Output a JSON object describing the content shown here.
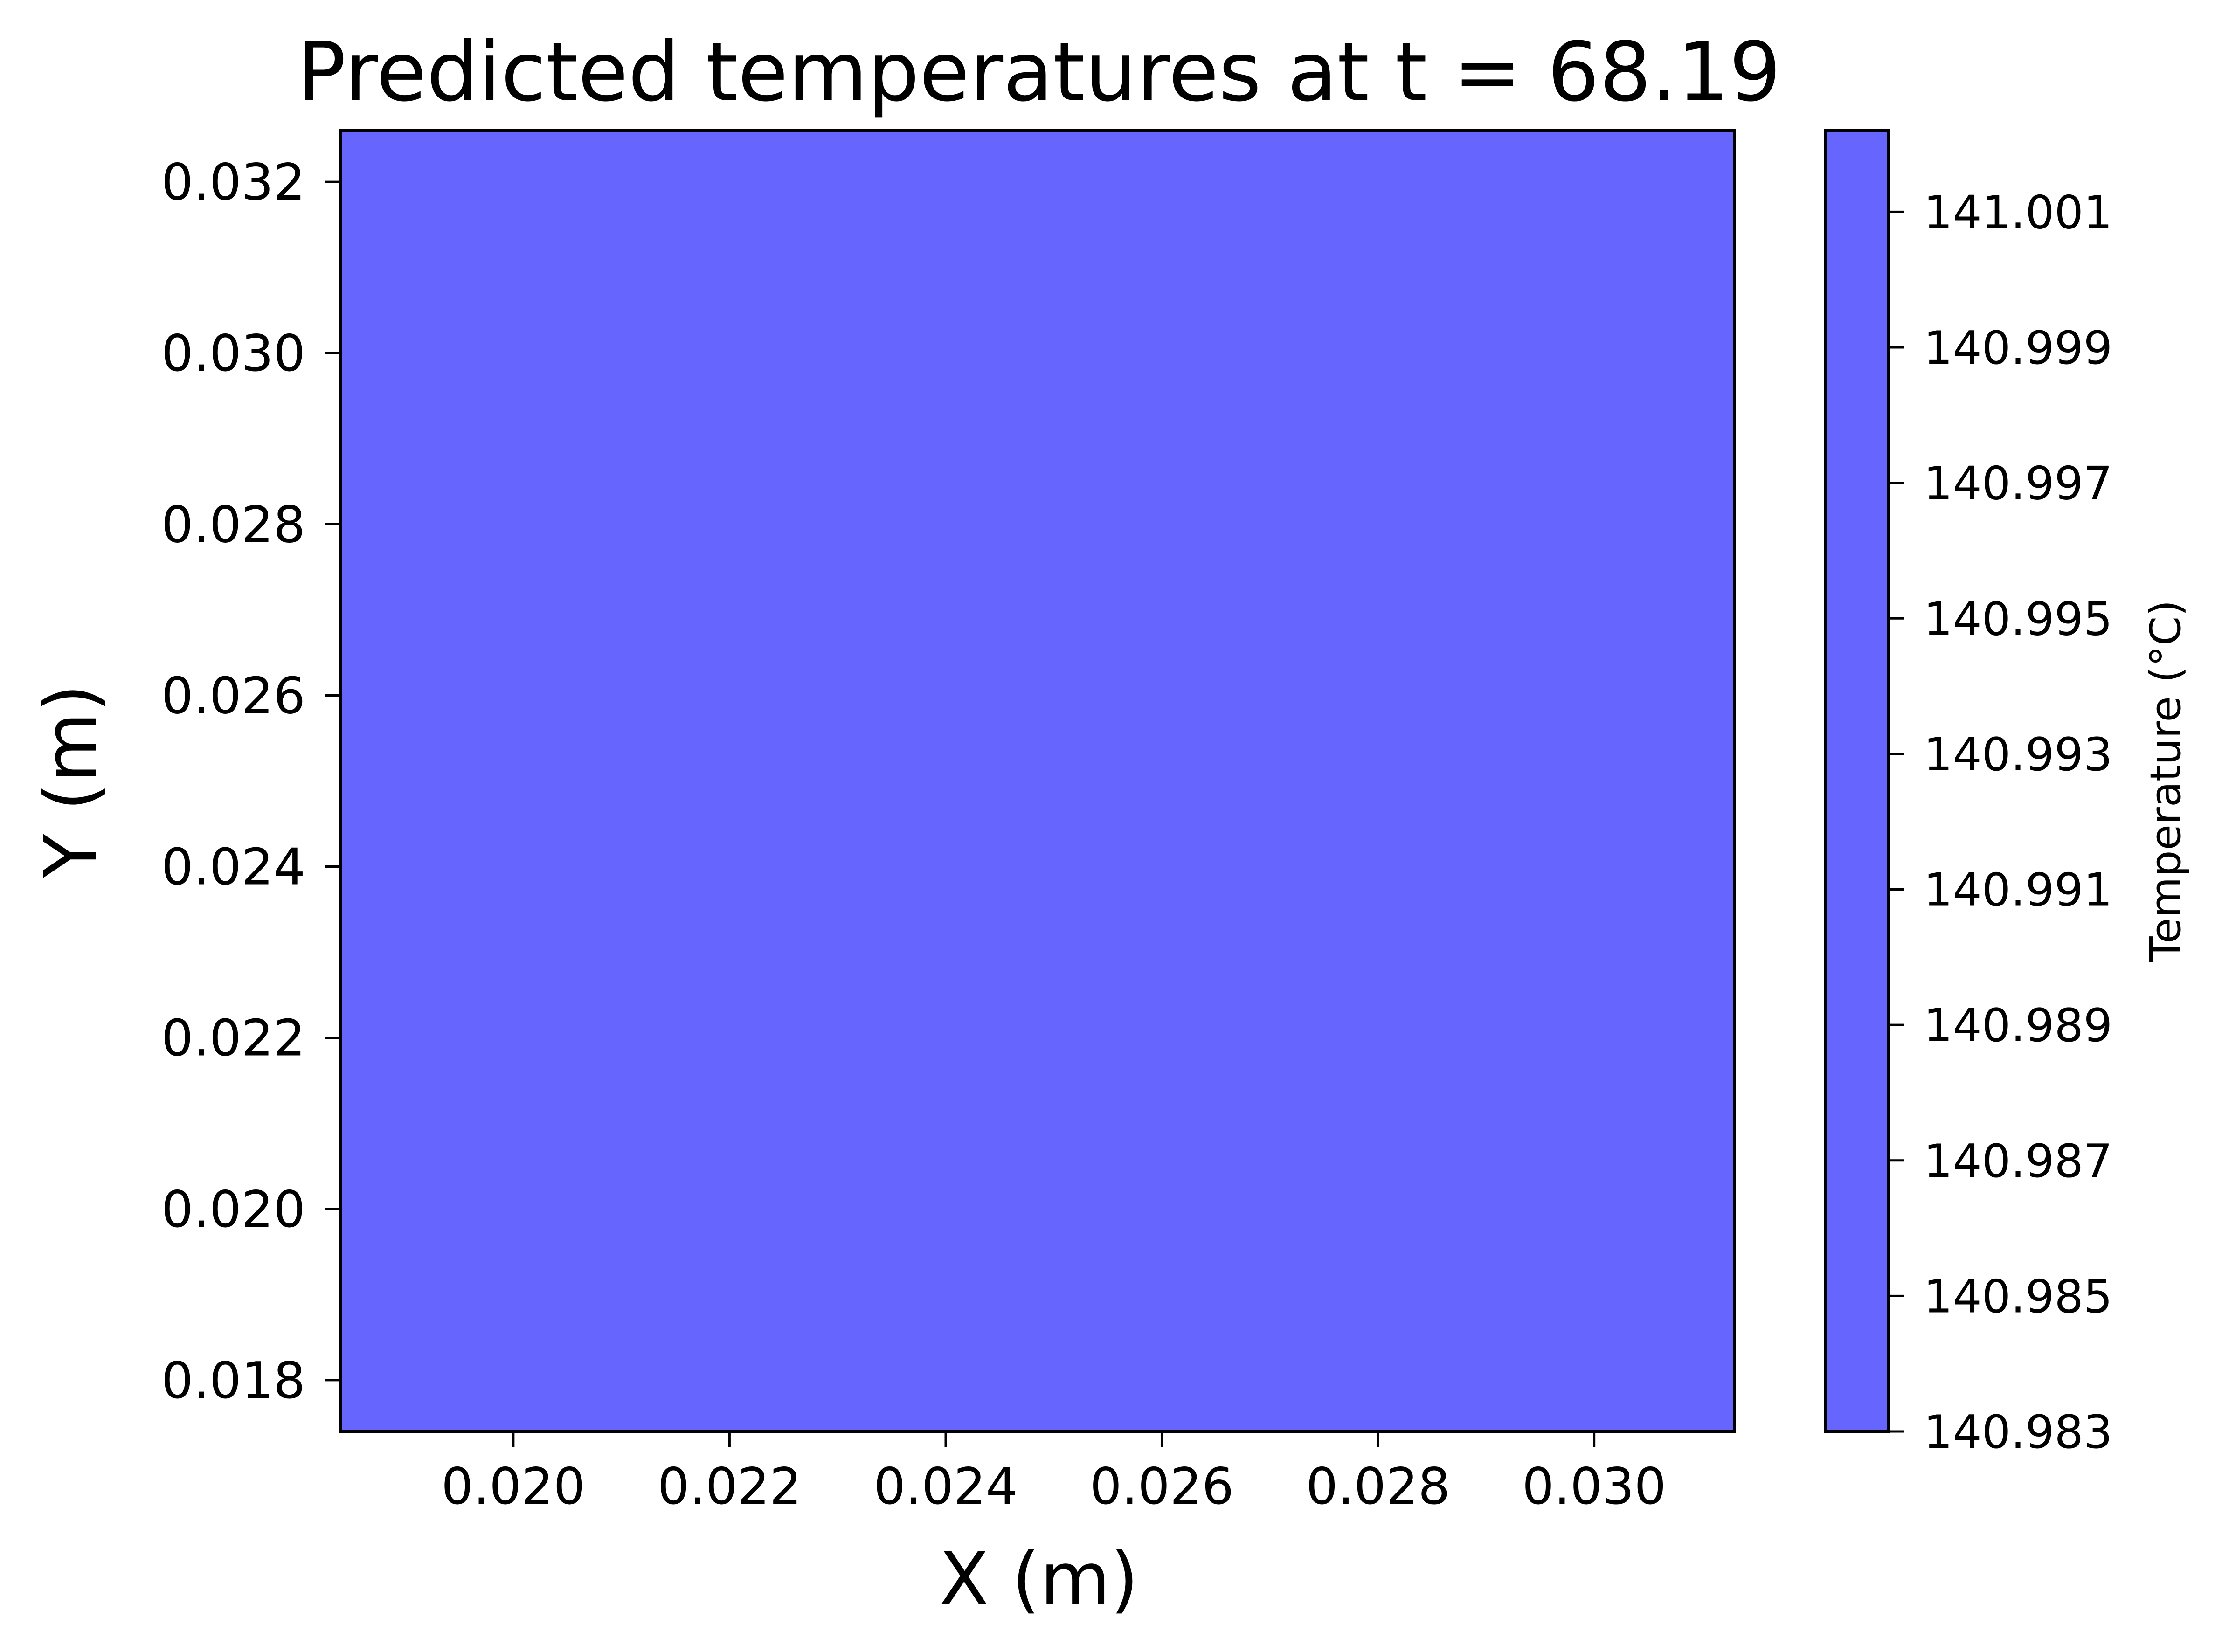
{
  "chart_data": {
    "type": "heatmap",
    "title": "Predicted temperatures at t = 68.19",
    "xlabel": "X (m)",
    "ylabel": "Y (m)",
    "xlim": [
      0.0184,
      0.0313
    ],
    "ylim": [
      0.0174,
      0.0326
    ],
    "x_ticks": [
      0.02,
      0.022,
      0.024,
      0.026,
      0.028,
      0.03
    ],
    "x_tick_labels": [
      "0.020",
      "0.022",
      "0.024",
      "0.026",
      "0.028",
      "0.030"
    ],
    "y_ticks": [
      0.018,
      0.02,
      0.022,
      0.024,
      0.026,
      0.028,
      0.03,
      0.032
    ],
    "y_tick_labels": [
      "0.018",
      "0.020",
      "0.022",
      "0.024",
      "0.026",
      "0.028",
      "0.030",
      "0.032"
    ],
    "field_value": 141.0,
    "field_color": "#6666ff",
    "colorbar": {
      "label": "Temperature (°C)",
      "range": [
        140.983,
        141.0022
      ],
      "ticks": [
        140.983,
        140.985,
        140.987,
        140.989,
        140.991,
        140.993,
        140.995,
        140.997,
        140.999,
        141.001
      ],
      "tick_labels": [
        "140.983",
        "140.985",
        "140.987",
        "140.989",
        "140.991",
        "140.993",
        "140.995",
        "140.997",
        "140.999",
        "141.001"
      ],
      "color": "#6666ff"
    },
    "grid": false
  }
}
